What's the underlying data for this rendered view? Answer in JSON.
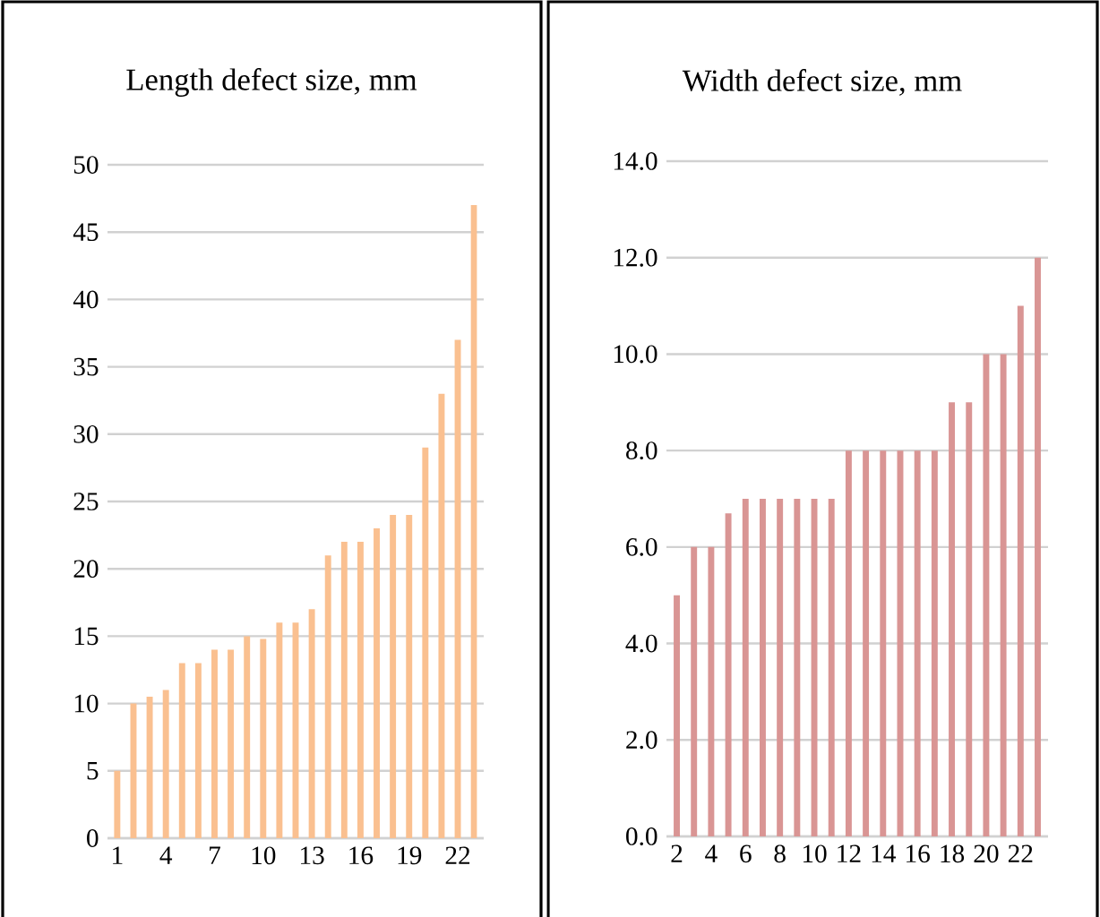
{
  "chart_data": [
    {
      "type": "bar",
      "title": "Length defect size, mm",
      "categories": [
        "1",
        null,
        null,
        "4",
        null,
        null,
        "7",
        null,
        null,
        "10",
        null,
        null,
        "13",
        null,
        null,
        "16",
        null,
        null,
        "19",
        null,
        null,
        "22",
        null
      ],
      "values": [
        5,
        10,
        10.5,
        11,
        13,
        13,
        14,
        14,
        15,
        14.8,
        16,
        16,
        17,
        21,
        22,
        22,
        23,
        24,
        24,
        29,
        33,
        37,
        47
      ],
      "color": "#fac090",
      "ylim": [
        0,
        50
      ],
      "yticks": [
        0,
        5,
        10,
        15,
        20,
        25,
        30,
        35,
        40,
        45,
        50
      ],
      "grid": "y"
    },
    {
      "type": "bar",
      "title": "Width defect  size, mm",
      "categories": [
        "2",
        null,
        "4",
        null,
        "6",
        null,
        "8",
        null,
        "10",
        null,
        "12",
        null,
        "14",
        null,
        "16",
        null,
        "18",
        null,
        "20",
        null,
        "22",
        null
      ],
      "values": [
        5,
        6,
        6,
        6.7,
        7,
        7,
        7,
        7,
        7,
        7,
        8,
        8,
        8,
        8,
        8,
        8,
        9,
        9,
        10,
        10,
        11,
        12
      ],
      "color": "#d99594",
      "ylim": [
        0,
        14
      ],
      "yticks": [
        {
          "value": 0,
          "label": "0.0"
        },
        {
          "value": 2,
          "label": "2.0"
        },
        {
          "value": 4,
          "label": "4.0"
        },
        {
          "value": 6,
          "label": "6.0"
        },
        {
          "value": 8,
          "label": "8.0"
        },
        {
          "value": 10,
          "label": "10.0"
        },
        {
          "value": 12,
          "label": "12.0"
        },
        {
          "value": 14,
          "label": "14.0"
        }
      ],
      "grid": "y"
    }
  ]
}
